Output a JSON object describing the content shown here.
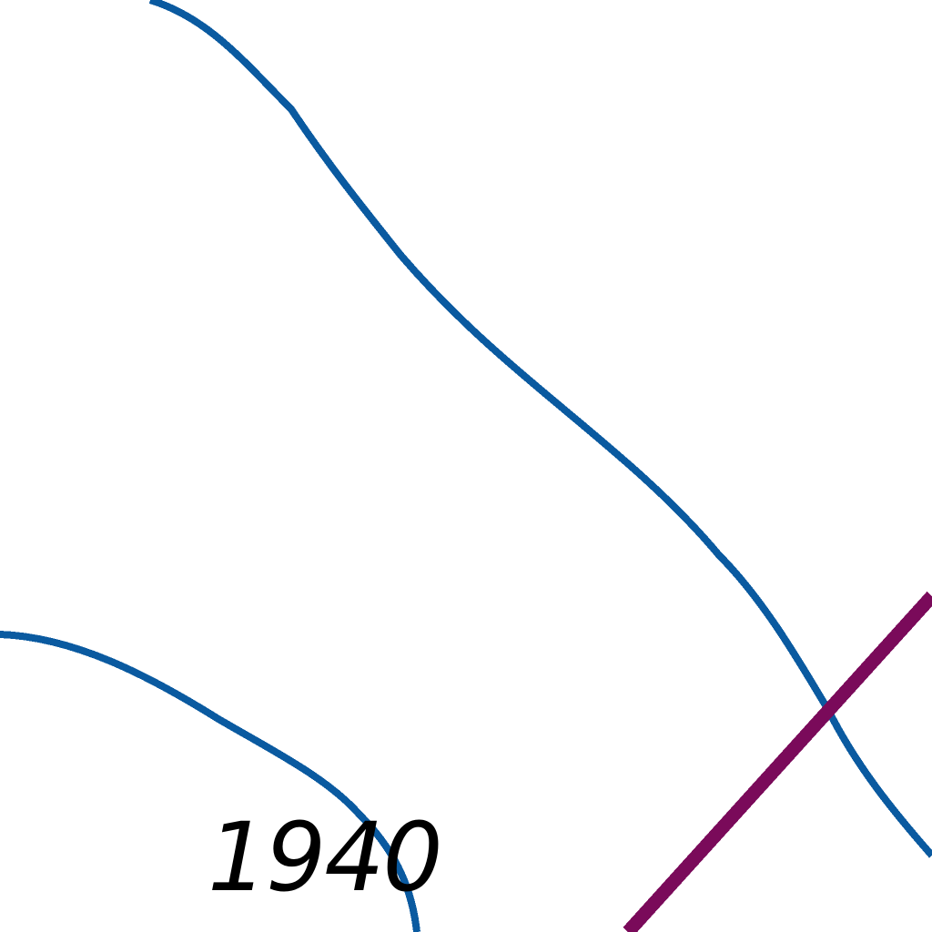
{
  "map": {
    "contour_label": "1940",
    "colors": {
      "background": "#ffffff",
      "contour_line": "#0a5aa0",
      "boundary_line": "#7a0a5a",
      "label_text": "#000000"
    }
  }
}
